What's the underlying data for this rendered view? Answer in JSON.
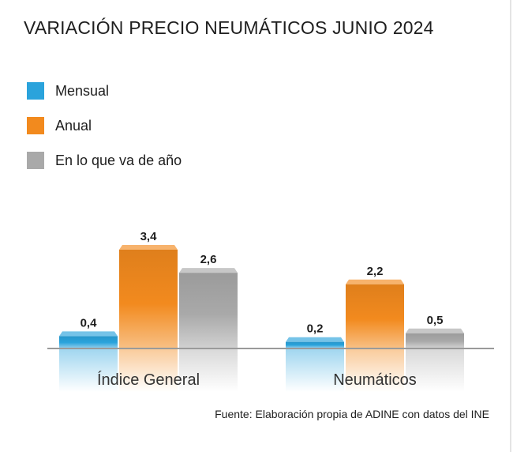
{
  "title": "VARIACIÓN PRECIO NEUMÁTICOS JUNIO 2024",
  "source": "Fuente: Elaboración propia de ADINE con datos del INE",
  "colors": {
    "blue": "#2aa3dc",
    "orange": "#f28a1e",
    "gray": "#a9a9a9"
  },
  "chart_data": {
    "type": "bar",
    "title": "VARIACIÓN PRECIO NEUMÁTICOS JUNIO 2024",
    "categories": [
      "Índice General",
      "Neumáticos"
    ],
    "series": [
      {
        "name": "Mensual",
        "values": [
          0.4,
          0.2
        ],
        "labels": [
          "0,4",
          "0,2"
        ],
        "color": "#2aa3dc"
      },
      {
        "name": "Anual",
        "values": [
          3.4,
          2.2
        ],
        "labels": [
          "3,4",
          "2,2"
        ],
        "color": "#f28a1e"
      },
      {
        "name": "En lo que va de año",
        "values": [
          2.6,
          0.5
        ],
        "labels": [
          "2,6",
          "0,5"
        ],
        "color": "#a9a9a9"
      }
    ],
    "ylim": [
      0,
      3.4
    ],
    "grid": false,
    "legend_position": "top-left",
    "data_labels": true,
    "xlabel": "",
    "ylabel": ""
  }
}
